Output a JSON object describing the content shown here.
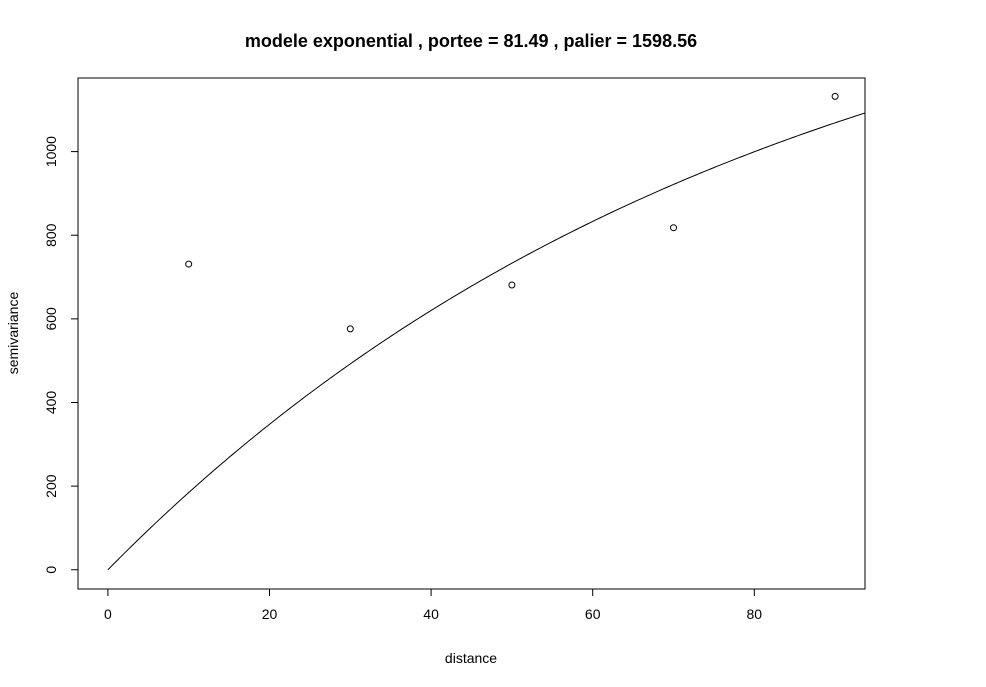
{
  "chart_data": {
    "type": "scatter",
    "title": "modele  exponential , portee = 81.49 , palier = 1598.56",
    "xlabel": "distance",
    "ylabel": "semivariance",
    "xlim": [
      -3.7,
      93.7
    ],
    "ylim": [
      -46,
      1176
    ],
    "x_ticks": [
      0,
      20,
      40,
      60,
      80
    ],
    "y_ticks": [
      0,
      200,
      400,
      600,
      800,
      1000
    ],
    "grid": false,
    "points": [
      {
        "x": 10,
        "y": 731
      },
      {
        "x": 30,
        "y": 576
      },
      {
        "x": 50,
        "y": 681
      },
      {
        "x": 70,
        "y": 818
      },
      {
        "x": 90,
        "y": 1132
      }
    ],
    "model_curve": {
      "type": "exponential",
      "range": 81.49,
      "sill": 1598.56
    }
  }
}
